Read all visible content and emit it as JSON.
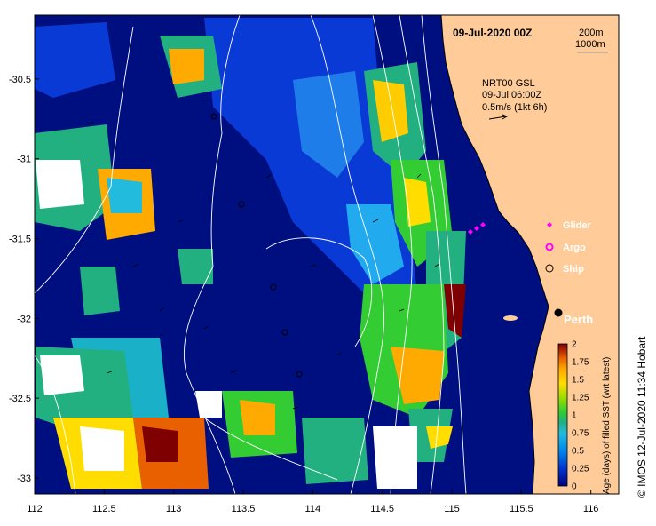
{
  "header": {
    "date_title": "09-Jul-2020 00Z",
    "depth_1": "200m",
    "depth_2": "1000m"
  },
  "vector_legend": {
    "line1": "NRT00 GSL",
    "line2": "09-Jul 06:00Z",
    "line3": "0.5m/s (1kt 6h)"
  },
  "symbol_legend": [
    {
      "label": "Glider",
      "symbol": "diamond",
      "color": "#ff00ff"
    },
    {
      "label": "Argo",
      "symbol": "circle-filled",
      "color": "#ff00ff"
    },
    {
      "label": "Ship",
      "symbol": "circle-open",
      "color": "#000000"
    }
  ],
  "city": {
    "label": "Perth",
    "lon": 115.86,
    "lat": -31.95
  },
  "colorbar": {
    "title": "Age (days) of filled SST (wrt latest)",
    "ticks": [
      "0",
      "0.25",
      "0.5",
      "0.75",
      "1",
      "1.25",
      "1.5",
      "1.75",
      "2"
    ],
    "colors": [
      "#00007f",
      "#0033cc",
      "#0088ee",
      "#22bbdd",
      "#22b080",
      "#33cc33",
      "#99dd00",
      "#ffdd00",
      "#ffaa00",
      "#e86000",
      "#aa2200",
      "#7f0000"
    ]
  },
  "axes": {
    "x_ticks": [
      "112",
      "112.5",
      "113",
      "113.5",
      "114",
      "114.5",
      "115",
      "115.5",
      "116"
    ],
    "y_ticks": [
      "-30.5",
      "-31",
      "-31.5",
      "-32",
      "-32.5",
      "-33"
    ],
    "lon_range": [
      112,
      116.2
    ],
    "lat_range": [
      -33.1,
      -30.1
    ]
  },
  "credit": "© IMOS 12-Jul-2020 11:34 Hobart",
  "colors": {
    "land": "#ffcc99",
    "ocean_base": "#000f80",
    "contour": "#ffffff"
  }
}
